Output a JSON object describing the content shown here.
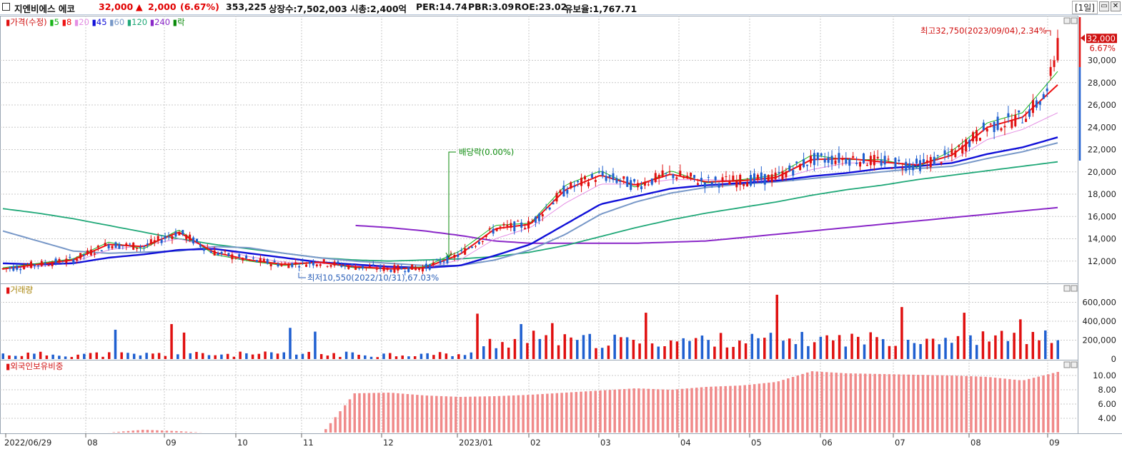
{
  "header": {
    "name": "지엔비에스 에코",
    "price": "32,000",
    "change_arrow": "▲",
    "change": "2,000",
    "change_pct": "(6.67%)",
    "volume": "353,225",
    "listed_shares": "상장수:7,502,003",
    "market_cap": "시총:2,400억",
    "per": "PER:14.74",
    "pbr": "PBR:3.09",
    "roe": "ROE:23.02",
    "float_ratio": "유보율:1,767.71",
    "period": "[1일]",
    "minimize_icon": "window-minimize-icon",
    "close_icon": "window-close-icon"
  },
  "legend": {
    "price": "가격(수정)",
    "items": [
      {
        "label": "5",
        "color": "#18b418"
      },
      {
        "label": "8",
        "color": "#ee1111"
      },
      {
        "label": "20",
        "color": "#e48ee4"
      },
      {
        "label": "45",
        "color": "#1010d8"
      },
      {
        "label": "60",
        "color": "#7898c8"
      },
      {
        "label": "120",
        "color": "#20a878"
      },
      {
        "label": "240",
        "color": "#8a28c8"
      },
      {
        "label": "락",
        "color": "#0a8a0a"
      }
    ],
    "volume": "거래량",
    "foreign": "외국인보유비중"
  },
  "annotations": {
    "high": "최고32,750(2023/09/04),2.34%",
    "low": "최저10,550(2022/10/31),67.03%",
    "dividend": "배당락(0.00%)",
    "last_price": "32,000",
    "last_pct": "6.67%"
  },
  "colors": {
    "up": "#e01010",
    "down": "#1f5fd0",
    "grid": "#c8c8c8",
    "foreign_bar": "#f08a8a"
  },
  "chart_data": [
    {
      "type": "candlestick",
      "title": "가격(수정)",
      "ylim": [
        10000,
        34000
      ],
      "yticks": [
        12000,
        14000,
        16000,
        18000,
        20000,
        22000,
        24000,
        26000,
        28000,
        30000
      ],
      "x_ticks": [
        "2022/06/29",
        "08",
        "09",
        "10",
        "11",
        "12",
        "2023/01",
        "02",
        "03",
        "04",
        "05",
        "06",
        "07",
        "08",
        "09"
      ],
      "series": [
        {
          "name": "5",
          "values": [
            11400,
            11800,
            12200,
            13700,
            13100,
            14800,
            12600,
            12000,
            11600,
            11900,
            11400,
            11300,
            11500,
            12900,
            15200,
            15400,
            18800,
            20100,
            18600,
            20100,
            19000,
            19300,
            19700,
            21500,
            21100,
            21100,
            20400,
            21900,
            24400,
            25300,
            29000
          ]
        },
        {
          "name": "8",
          "values": [
            11300,
            11700,
            12100,
            13500,
            13300,
            14600,
            12800,
            12100,
            11700,
            11900,
            11500,
            11300,
            11400,
            12600,
            14900,
            15300,
            18400,
            19700,
            18800,
            19800,
            19100,
            19200,
            19500,
            21100,
            21200,
            20900,
            20600,
            21500,
            24000,
            24900,
            27800
          ]
        },
        {
          "name": "20",
          "values": [
            11300,
            11500,
            11900,
            13000,
            13400,
            14000,
            13200,
            12400,
            11900,
            11800,
            11600,
            11400,
            11400,
            12100,
            14000,
            15000,
            17200,
            18900,
            18900,
            19300,
            19300,
            19200,
            19300,
            20200,
            20800,
            20800,
            20700,
            21000,
            22900,
            23800,
            25300
          ]
        },
        {
          "name": "45",
          "values": [
            11800,
            11700,
            11800,
            12300,
            12600,
            13000,
            13100,
            12700,
            12300,
            11900,
            11700,
            11500,
            11400,
            11600,
            12500,
            13500,
            15300,
            17100,
            17800,
            18500,
            18800,
            19000,
            19200,
            19600,
            19900,
            20300,
            20500,
            20800,
            21600,
            22200,
            23100
          ]
        },
        {
          "name": "60",
          "values": [
            14700,
            13800,
            12900,
            12700,
            12800,
            12900,
            13300,
            13200,
            12700,
            12300,
            12000,
            11800,
            11600,
            11600,
            12100,
            13000,
            14400,
            16200,
            17300,
            18100,
            18600,
            18900,
            19100,
            19400,
            19700,
            20000,
            20300,
            20500,
            21200,
            21800,
            22600
          ]
        },
        {
          "name": "120",
          "values": [
            16700,
            16300,
            15800,
            15200,
            14600,
            14000,
            13500,
            13100,
            12700,
            12300,
            12100,
            12000,
            12100,
            12200,
            12400,
            12800,
            13400,
            14200,
            15000,
            15700,
            16300,
            16800,
            17300,
            17900,
            18400,
            18800,
            19300,
            19700,
            20100,
            20500,
            20900
          ]
        },
        {
          "name": "240",
          "values": [
            null,
            null,
            null,
            null,
            null,
            null,
            null,
            null,
            null,
            null,
            15200,
            15000,
            14700,
            14300,
            13800,
            13600,
            13600,
            13600,
            13600,
            13700,
            13800,
            14100,
            14400,
            14700,
            15000,
            15300,
            15600,
            15900,
            16200,
            16500,
            16800
          ]
        }
      ],
      "high": 32750,
      "low": 10550,
      "last": 32000
    },
    {
      "type": "bar",
      "title": "거래량",
      "ylim": [
        0,
        800000
      ],
      "yticks": [
        200000,
        400000,
        600000
      ],
      "ytick_labels": [
        "200,000",
        "400,000",
        "600,000"
      ]
    },
    {
      "type": "bar",
      "title": "외국인보유비중",
      "ylim": [
        2,
        12
      ],
      "yticks": [
        4,
        6,
        8,
        10
      ],
      "ytick_labels": [
        "4.00",
        "6.00",
        "8.00",
        "10.00"
      ],
      "values": [
        1.5,
        1.6,
        1.8,
        2.0,
        2.4,
        2.2,
        1.9,
        1.6,
        1.5,
        1.4,
        7.5,
        7.6,
        7.2,
        7.0,
        7.1,
        7.3,
        7.6,
        7.9,
        8.2,
        8.0,
        8.4,
        8.6,
        9.1,
        10.6,
        10.3,
        10.2,
        10.1,
        10.0,
        9.8,
        9.3,
        10.5
      ]
    }
  ]
}
